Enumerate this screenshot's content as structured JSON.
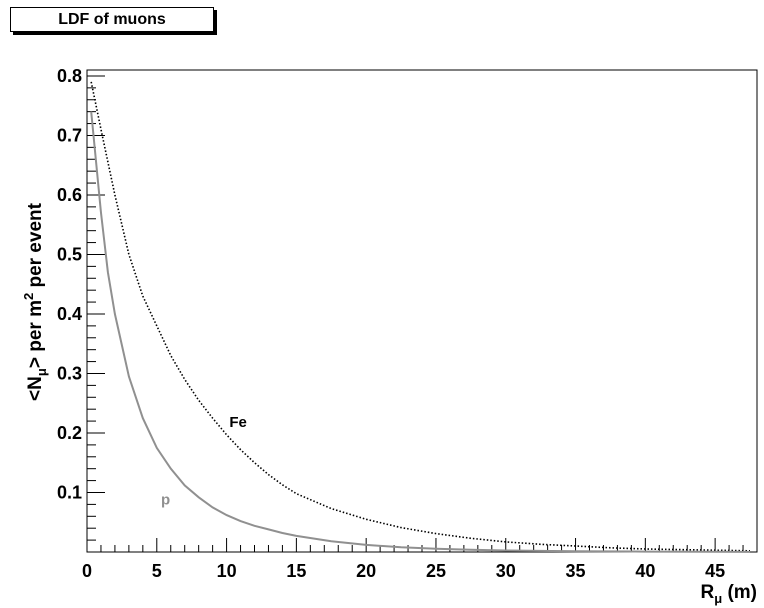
{
  "chart_data": {
    "type": "line",
    "title": "LDF of muons",
    "xlabel_main": "R",
    "xlabel_sub": "μ",
    "xlabel_unit": " (m)",
    "ylabel_parts": [
      "<N",
      "μ",
      "> per m",
      "2",
      " per event"
    ],
    "xlim": [
      0,
      48
    ],
    "ylim": [
      0,
      0.81
    ],
    "xticks": [
      0,
      5,
      10,
      15,
      20,
      25,
      30,
      35,
      40,
      45
    ],
    "xtick_labels": [
      "0",
      "5",
      "10",
      "15",
      "20",
      "25",
      "30",
      "35",
      "40",
      "45"
    ],
    "yticks": [
      0.1,
      0.2,
      0.3,
      0.4,
      0.5,
      0.6,
      0.7,
      0.8
    ],
    "ytick_labels": [
      "0.1",
      "0.2",
      "0.3",
      "0.4",
      "0.5",
      "0.6",
      "0.7",
      "0.8"
    ],
    "grid": false,
    "series": [
      {
        "name": "Fe",
        "color": "#000000",
        "style": "dotted",
        "x": [
          0.3,
          1,
          2,
          3,
          4,
          5,
          6,
          7,
          8,
          9,
          10,
          11,
          12,
          13,
          14,
          15,
          17.5,
          20,
          22.5,
          25,
          27.5,
          30,
          32.5,
          35,
          37.5,
          40,
          42.5,
          45,
          47.5
        ],
        "y": [
          0.79,
          0.71,
          0.6,
          0.5,
          0.43,
          0.38,
          0.33,
          0.29,
          0.255,
          0.225,
          0.197,
          0.172,
          0.15,
          0.13,
          0.113,
          0.098,
          0.073,
          0.055,
          0.041,
          0.031,
          0.023,
          0.017,
          0.013,
          0.01,
          0.007,
          0.005,
          0.004,
          0.003,
          0.002
        ]
      },
      {
        "name": "p",
        "color": "#909090",
        "style": "solid",
        "x": [
          0.3,
          1,
          1.5,
          2,
          3,
          4,
          5,
          6,
          7,
          8,
          9,
          10,
          11,
          12,
          13,
          14,
          15,
          17.5,
          20,
          22.5,
          25,
          27.5,
          30,
          32.5,
          35,
          40,
          45,
          47.5
        ],
        "y": [
          0.74,
          0.57,
          0.47,
          0.4,
          0.295,
          0.225,
          0.175,
          0.14,
          0.112,
          0.092,
          0.075,
          0.062,
          0.052,
          0.044,
          0.038,
          0.032,
          0.027,
          0.018,
          0.012,
          0.008,
          0.0055,
          0.0038,
          0.0026,
          0.0018,
          0.0012,
          0.0006,
          0.0003,
          0.0002
        ]
      }
    ],
    "annotations": [
      {
        "text": "Fe",
        "x": 10.2,
        "y": 0.21,
        "color": "#000000"
      },
      {
        "text": "p",
        "x": 5.3,
        "y": 0.08,
        "color": "#909090"
      }
    ]
  }
}
